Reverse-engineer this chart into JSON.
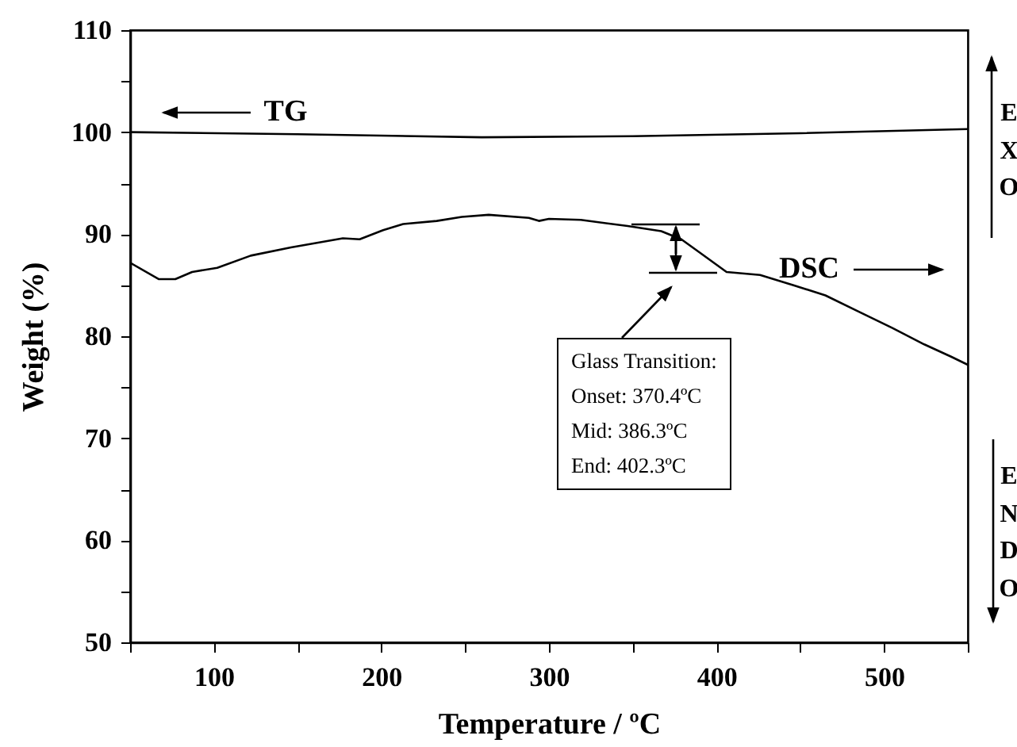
{
  "chart_data": {
    "type": "line",
    "xlabel": "Temperature / ºC",
    "ylabel": "Weight (%)",
    "xlim": [
      50,
      550
    ],
    "xticks": [
      {
        "value": 50,
        "label": null
      },
      100,
      {
        "value": 150,
        "label": null
      },
      200,
      {
        "value": 250,
        "label": null
      },
      300,
      {
        "value": 350,
        "label": null
      },
      400,
      {
        "value": 450,
        "label": null
      },
      500,
      {
        "value": 550,
        "label": null
      }
    ],
    "ylim": [
      50,
      110
    ],
    "yticks": [
      50,
      {
        "value": 55,
        "label": null
      },
      60,
      {
        "value": 65,
        "label": null
      },
      70,
      {
        "value": 75,
        "label": null
      },
      80,
      {
        "value": 85,
        "label": null
      },
      90,
      {
        "value": 95,
        "label": null
      },
      100,
      {
        "value": 105,
        "label": null
      },
      110
    ],
    "series": [
      {
        "name": "TG",
        "color": "#000000",
        "x": [
          50,
          150,
          260,
          350,
          450,
          550
        ],
        "values": [
          100,
          99.8,
          99.5,
          99.6,
          99.9,
          100.3
        ]
      },
      {
        "name": "DSC",
        "color": "#000000",
        "x": [
          50,
          67,
          77,
          87,
          102,
          122,
          146,
          177,
          187,
          201,
          213,
          233,
          248,
          264,
          288,
          294,
          300,
          319,
          347,
          367,
          379,
          390,
          406,
          426,
          446,
          465,
          485,
          505,
          524,
          540,
          550
        ],
        "values": [
          87.2,
          85.6,
          85.6,
          86.3,
          86.7,
          87.9,
          88.7,
          89.6,
          89.5,
          90.4,
          91.0,
          91.3,
          91.7,
          91.9,
          91.6,
          91.3,
          91.5,
          91.4,
          90.8,
          90.3,
          89.5,
          88.2,
          86.3,
          86.0,
          85.0,
          84.0,
          82.4,
          80.8,
          79.2,
          78.0,
          77.2
        ]
      }
    ],
    "annotations": [
      "Glass Transition:",
      "Onset: 370.4ºC",
      "Mid: 386.3ºC",
      "End: 402.3ºC",
      "EXO",
      "ENDO"
    ],
    "grid": false,
    "legend": "top",
    "marker": "none",
    "line_style": "solid"
  }
}
